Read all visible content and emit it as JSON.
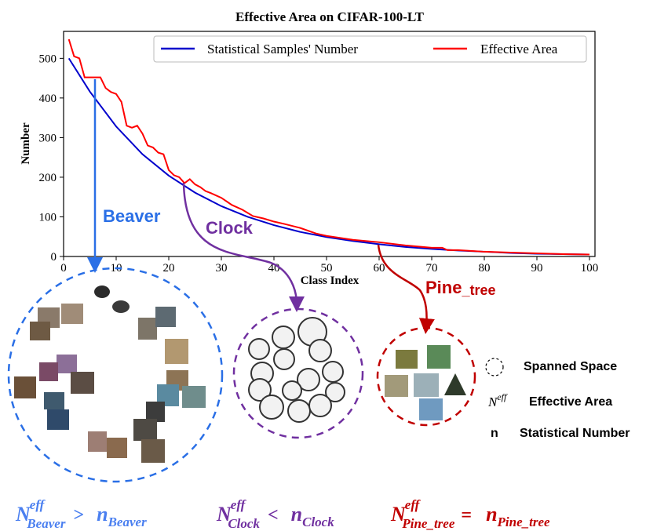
{
  "chart_data": {
    "type": "line",
    "title": "Effective Area on CIFAR-100-LT",
    "xlabel": "Class Index",
    "ylabel": "Number",
    "xlim": [
      0,
      100
    ],
    "ylim": [
      0,
      550
    ],
    "xticks": [
      0,
      10,
      20,
      30,
      40,
      50,
      60,
      70,
      80,
      90,
      100
    ],
    "yticks": [
      0,
      100,
      200,
      300,
      400,
      500
    ],
    "legend": "top-right",
    "series": [
      {
        "name": "Statistical Samples' Number",
        "color": "#0000cc",
        "x": [
          1,
          5,
          10,
          15,
          20,
          25,
          30,
          35,
          40,
          45,
          50,
          55,
          60,
          65,
          70,
          75,
          80,
          85,
          90,
          95,
          100
        ],
        "y": [
          500,
          416,
          328,
          258,
          204,
          161,
          127,
          100,
          79,
          62,
          49,
          39,
          31,
          24,
          19,
          15,
          12,
          9,
          7,
          6,
          5
        ]
      },
      {
        "name": "Effective Area",
        "color": "#ff0000",
        "x": [
          1,
          2,
          3,
          4,
          5,
          6,
          7,
          8,
          9,
          10,
          11,
          12,
          13,
          14,
          15,
          16,
          17,
          18,
          19,
          20,
          21,
          22,
          23,
          24,
          25,
          26,
          27,
          28,
          30,
          32,
          34,
          36,
          38,
          40,
          42,
          45,
          48,
          50,
          55,
          60,
          65,
          70,
          72,
          73,
          75,
          80,
          85,
          90,
          95,
          100
        ],
        "y": [
          548,
          505,
          500,
          452,
          452,
          452,
          452,
          425,
          415,
          410,
          390,
          330,
          325,
          330,
          310,
          280,
          275,
          262,
          258,
          218,
          205,
          200,
          185,
          195,
          182,
          175,
          165,
          160,
          148,
          130,
          118,
          102,
          96,
          88,
          82,
          72,
          58,
          52,
          42,
          36,
          28,
          22,
          22,
          16,
          16,
          12,
          10,
          8,
          6,
          5
        ]
      }
    ],
    "callouts": [
      {
        "label": "Beaver",
        "x": 6,
        "color": "#2a6fe6"
      },
      {
        "label": "Clock",
        "x": 23,
        "color": "#7030a0"
      },
      {
        "label": "Pine_tree",
        "x": 60,
        "color": "#c00000"
      }
    ]
  },
  "legend_box": {
    "items": [
      {
        "symbol": "dashed-circle",
        "text": "Spanned Space"
      },
      {
        "symbol": "Neff",
        "text": "Effective Area"
      },
      {
        "symbol": "n",
        "text": "Statistical Number"
      }
    ]
  },
  "equation": [
    {
      "left": "N",
      "sup": "eff",
      "sub": "Beaver",
      "op": ">",
      "right": "n",
      "rsub": "Beaver",
      "color": "#4a7ff0"
    },
    {
      "left": "N",
      "sup": "eff",
      "sub": "Clock",
      "op": "<",
      "right": "n",
      "rsub": "Clock",
      "color": "#7030a0"
    },
    {
      "left": "N",
      "sup": "eff",
      "sub": "Pine_tree",
      "op": "=",
      "right": "n",
      "rsub": "Pine_tree",
      "color": "#c00000"
    }
  ],
  "icons": {
    "beaver_images": "beaver-thumbnail-icon",
    "clock_images": "clock-thumbnail-icon",
    "tree_images": "pine-tree-thumbnail-icon"
  }
}
